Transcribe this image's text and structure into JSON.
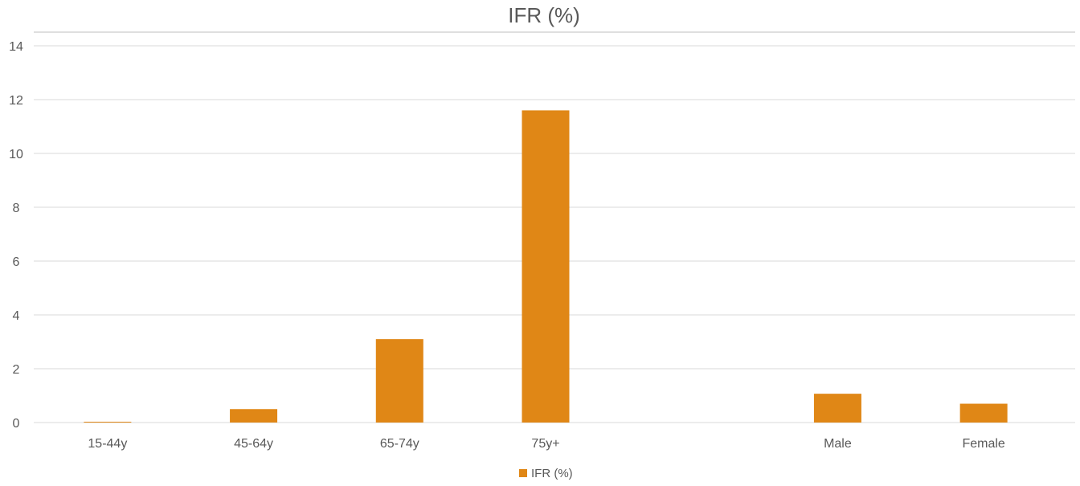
{
  "chart_data": {
    "type": "bar",
    "title": "IFR (%)",
    "xlabel": "",
    "ylabel": "",
    "categories": [
      "15-44y",
      "45-64y",
      "65-74y",
      "75y+",
      "",
      "Male",
      "Female"
    ],
    "series": [
      {
        "name": "IFR (%)",
        "values": [
          0.03,
          0.5,
          3.1,
          11.6,
          null,
          1.07,
          0.7
        ]
      }
    ],
    "ylim": [
      0,
      14
    ],
    "yticks": [
      0,
      2,
      4,
      6,
      8,
      10,
      12,
      14
    ],
    "grid": true,
    "legend_position": "bottom",
    "colors": {
      "bar": "#e08716",
      "grid": "#d9d9d9",
      "text": "#595959"
    }
  }
}
